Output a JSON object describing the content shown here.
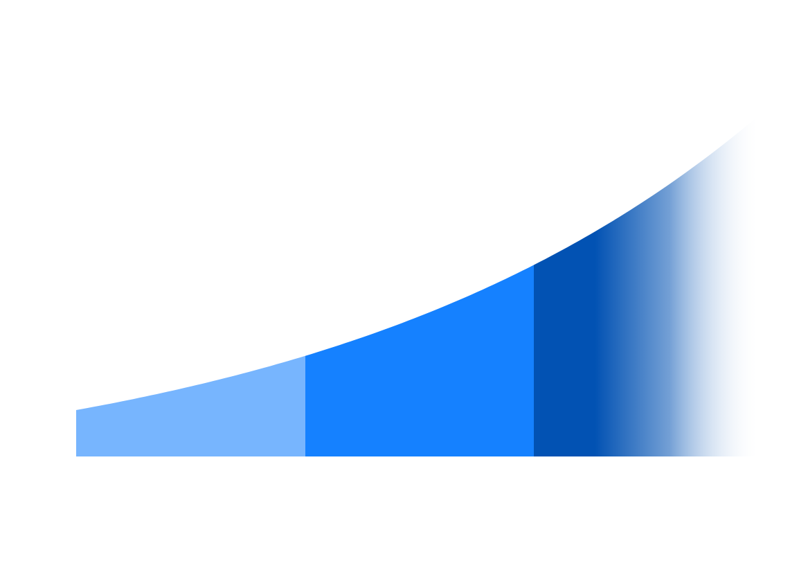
{
  "diagram": {
    "type": "growth-curve",
    "segments": [
      {
        "id": "segment-1",
        "color": "#77b5fe"
      },
      {
        "id": "segment-2",
        "color": "#1581ff"
      },
      {
        "id": "segment-3",
        "color": "#0252b3",
        "fade_to": "#ffffff"
      }
    ]
  }
}
